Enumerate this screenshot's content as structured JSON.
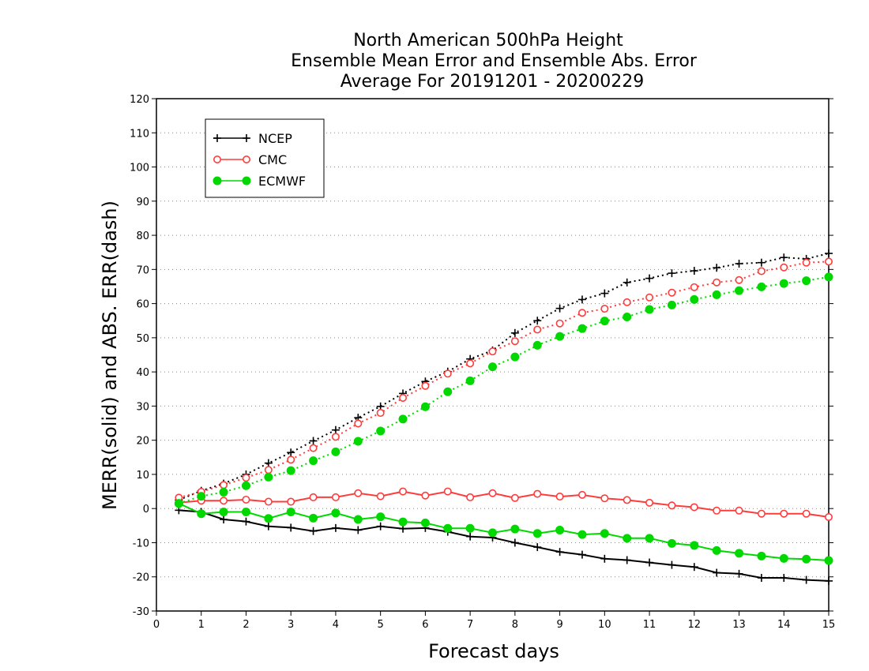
{
  "chart_data": {
    "type": "line",
    "title": [
      "North American 500hPa Height",
      "Ensemble Mean Error and Ensemble Abs. Error",
      "Average For 20191201 - 20200229"
    ],
    "xlabel": "Forecast days",
    "ylabel": "MERR(solid) and ABS. ERR(dash)",
    "xlim": [
      0,
      15
    ],
    "ylim": [
      -30,
      120
    ],
    "x_ticks": [
      0,
      1,
      2,
      3,
      4,
      5,
      6,
      7,
      8,
      9,
      10,
      11,
      12,
      13,
      14,
      15
    ],
    "y_ticks": [
      -30,
      -20,
      -10,
      0,
      10,
      20,
      30,
      40,
      50,
      60,
      70,
      80,
      90,
      100,
      110,
      120
    ],
    "grid": "horizontal dotted",
    "legend_position": "top-left",
    "x": [
      0.5,
      1,
      1.5,
      2,
      2.5,
      3,
      3.5,
      4,
      4.5,
      5,
      5.5,
      6,
      6.5,
      7,
      7.5,
      8,
      8.5,
      9,
      9.5,
      10,
      10.5,
      11,
      11.5,
      12,
      12.5,
      13,
      13.5,
      14,
      14.5,
      15
    ],
    "series": [
      {
        "name": "NCEP",
        "color": "#000000",
        "marker": "plus",
        "mean_error": [
          -0.5,
          -1,
          -3.2,
          -3.8,
          -5.2,
          -5.6,
          -6.6,
          -5.7,
          -6.3,
          -5.2,
          -5.9,
          -5.7,
          -6.8,
          -8.2,
          -8.5,
          -10,
          -11.3,
          -12.7,
          -13.5,
          -14.7,
          -15.1,
          -15.8,
          -16.5,
          -17.1,
          -18.8,
          -19.1,
          -20.3,
          -20.3,
          -20.9,
          -21.2
        ],
        "abs_error": [
          2.5,
          5.2,
          7.3,
          10,
          13.3,
          16.4,
          19.8,
          23,
          26.6,
          29.9,
          33.7,
          37.2,
          40.1,
          43.8,
          46.3,
          51.4,
          55,
          58.6,
          61.2,
          63,
          66.2,
          67.4,
          68.9,
          69.6,
          70.5,
          71.7,
          72,
          73.5,
          73.1,
          74.7
        ]
      },
      {
        "name": "CMC",
        "color": "#ff3c3c",
        "marker": "open-circle",
        "mean_error": [
          1.7,
          2.3,
          2.3,
          2.6,
          2,
          2,
          3.3,
          3.3,
          4.5,
          3.6,
          5,
          3.8,
          5,
          3.3,
          4.5,
          3.1,
          4.3,
          3.5,
          4,
          3,
          2.5,
          1.7,
          0.9,
          0.4,
          -0.6,
          -0.6,
          -1.5,
          -1.5,
          -1.5,
          -2.5
        ],
        "abs_error": [
          3.2,
          4.9,
          6.9,
          9,
          11.3,
          14.3,
          17.7,
          21,
          24.9,
          28,
          32.4,
          35.9,
          39.5,
          42.5,
          46,
          49,
          52.4,
          54.2,
          57.3,
          58.5,
          60.4,
          61.8,
          63.2,
          64.8,
          66.2,
          66.9,
          69.5,
          70.6,
          72,
          72.3
        ]
      },
      {
        "name": "ECMWF",
        "color": "#00d800",
        "marker": "filled-circle",
        "mean_error": [
          1.5,
          -1.5,
          -1,
          -1,
          -2.9,
          -1,
          -2.8,
          -1.3,
          -3.2,
          -2.4,
          -3.9,
          -4.2,
          -5.8,
          -5.8,
          -7.1,
          -6,
          -7.3,
          -6.3,
          -7.6,
          -7.3,
          -8.7,
          -8.7,
          -10.2,
          -10.8,
          -12.3,
          -13.1,
          -13.9,
          -14.6,
          -14.8,
          -15.2
        ],
        "abs_error": [
          1.5,
          3.6,
          4.8,
          6.7,
          9.2,
          11.1,
          14,
          16.6,
          19.7,
          22.7,
          26.2,
          29.8,
          34.2,
          37.4,
          41.5,
          44.4,
          47.8,
          50.4,
          52.7,
          54.9,
          56.1,
          58.3,
          59.6,
          61.2,
          62.6,
          63.8,
          64.9,
          65.9,
          66.7,
          67.8
        ]
      }
    ]
  }
}
